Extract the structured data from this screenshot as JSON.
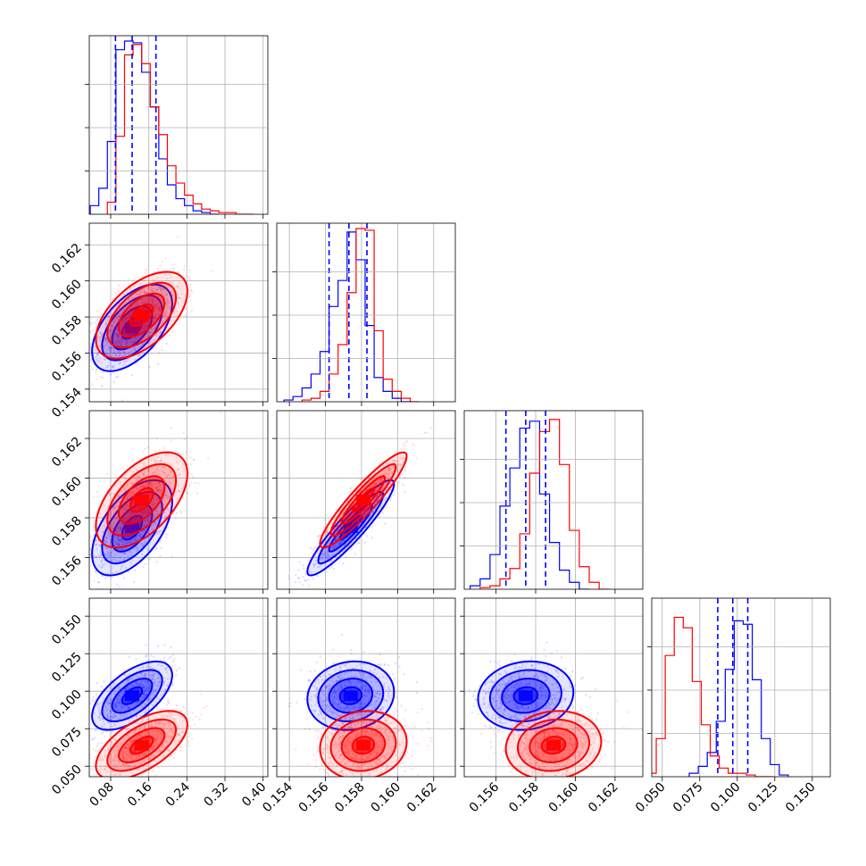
{
  "chart_data": {
    "type": "corner",
    "title": "",
    "params": [
      {
        "range": [
          0.035,
          0.41
        ],
        "ticks": [
          0.08,
          0.16,
          0.24,
          0.32,
          0.4
        ],
        "tick_labels": [
          "0.08",
          "0.16",
          "0.24",
          "0.32",
          "0.40"
        ]
      },
      {
        "range": [
          0.1533,
          0.1632
        ],
        "ticks": [
          0.154,
          0.156,
          0.158,
          0.16,
          0.162
        ],
        "tick_labels": [
          "0.154",
          "0.156",
          "0.158",
          "0.160",
          "0.162"
        ]
      },
      {
        "range": [
          0.1544,
          0.1634
        ],
        "ticks": [
          0.156,
          0.158,
          0.16,
          0.162
        ],
        "tick_labels": [
          "0.156",
          "0.158",
          "0.160",
          "0.162"
        ]
      },
      {
        "range": [
          0.043,
          0.162
        ],
        "ticks": [
          0.05,
          0.075,
          0.1,
          0.125,
          0.15
        ],
        "tick_labels": [
          "0.050",
          "0.075",
          "0.100",
          "0.125",
          "0.150"
        ]
      }
    ],
    "series": [
      {
        "color": "#0000ff",
        "means": [
          0.125,
          0.1574,
          0.1575,
          0.097
        ],
        "sds": [
          0.035,
          0.001,
          0.001,
          0.0095
        ],
        "correlations": [
          [
            1,
            0.55,
            0.55,
            0.6
          ],
          [
            0.55,
            1,
            0.92,
            0.1
          ],
          [
            0.55,
            0.92,
            1,
            0.1
          ],
          [
            0.6,
            0.1,
            0.1,
            1
          ]
        ],
        "quantiles": [
          [
            0.09,
            0.125,
            0.175
          ],
          [
            0.1562,
            0.1573,
            0.1583
          ],
          [
            0.1565,
            0.1575,
            0.1585
          ],
          [
            0.087,
            0.097,
            0.107
          ]
        ],
        "hist_x": [
          [
            0.037,
            0.055,
            0.073,
            0.091,
            0.109,
            0.127,
            0.145,
            0.163,
            0.181,
            0.199,
            0.217,
            0.235,
            0.253,
            0.271,
            0.289
          ],
          [
            0.1537,
            0.1542,
            0.1547,
            0.1552,
            0.1557,
            0.1562,
            0.1567,
            0.1572,
            0.1577,
            0.1582,
            0.1587,
            0.1592,
            0.1597,
            0.1602
          ],
          [
            0.1547,
            0.1552,
            0.1557,
            0.1562,
            0.1567,
            0.1572,
            0.1577,
            0.1582,
            0.1587,
            0.1592,
            0.1597,
            0.1602
          ],
          [
            0.068,
            0.074,
            0.08,
            0.086,
            0.092,
            0.098,
            0.104,
            0.11,
            0.116,
            0.122,
            0.128
          ]
        ],
        "hist_y": [
          [
            0.05,
            0.15,
            0.42,
            0.95,
            1.0,
            0.99,
            0.82,
            0.62,
            0.32,
            0.17,
            0.09,
            0.05,
            0.02,
            0.01,
            0.0
          ],
          [
            0.01,
            0.03,
            0.08,
            0.16,
            0.29,
            0.55,
            0.7,
            0.98,
            0.82,
            0.44,
            0.14,
            0.06,
            0.02,
            0.0
          ],
          [
            0.02,
            0.06,
            0.2,
            0.48,
            0.7,
            0.93,
            0.97,
            0.55,
            0.27,
            0.11,
            0.04,
            0.0
          ],
          [
            0.02,
            0.06,
            0.14,
            0.32,
            0.62,
            0.9,
            0.88,
            0.56,
            0.22,
            0.07,
            0.01
          ]
        ]
      },
      {
        "color": "#ff0000",
        "means": [
          0.145,
          0.1581,
          0.1589,
          0.064
        ],
        "sds": [
          0.04,
          0.001,
          0.001,
          0.0095
        ],
        "correlations": [
          [
            1,
            0.55,
            0.55,
            0.6
          ],
          [
            0.55,
            1,
            0.92,
            0.1
          ],
          [
            0.55,
            0.92,
            1,
            0.1
          ],
          [
            0.6,
            0.1,
            0.1,
            1
          ]
        ],
        "quantiles": [
          [
            0.105,
            0.145,
            0.195
          ],
          [
            0.1571,
            0.1581,
            0.1591
          ],
          [
            0.1579,
            0.1589,
            0.1599
          ],
          [
            0.054,
            0.064,
            0.074
          ]
        ],
        "hist_x": [
          [
            0.073,
            0.091,
            0.109,
            0.127,
            0.145,
            0.163,
            0.181,
            0.199,
            0.217,
            0.235,
            0.253,
            0.271,
            0.289,
            0.307,
            0.325,
            0.343,
            0.361
          ],
          [
            0.1547,
            0.1552,
            0.1557,
            0.1562,
            0.1567,
            0.1572,
            0.1577,
            0.1582,
            0.1587,
            0.1592,
            0.1597,
            0.1602,
            0.1607
          ],
          [
            0.1552,
            0.1557,
            0.1562,
            0.1567,
            0.1572,
            0.1577,
            0.1582,
            0.1587,
            0.1592,
            0.1597,
            0.1602,
            0.1607,
            0.1612
          ],
          [
            0.04,
            0.046,
            0.052,
            0.058,
            0.064,
            0.07,
            0.076,
            0.082,
            0.088,
            0.094,
            0.1,
            0.106,
            0.112,
            0.118
          ]
        ],
        "hist_y": [
          [
            0.07,
            0.45,
            0.92,
            0.98,
            0.87,
            0.62,
            0.46,
            0.28,
            0.18,
            0.11,
            0.06,
            0.03,
            0.02,
            0.01,
            0.01,
            0.0,
            0.0
          ],
          [
            0.01,
            0.02,
            0.06,
            0.16,
            0.33,
            0.63,
            1.0,
            0.99,
            0.41,
            0.13,
            0.06,
            0.02,
            0.0
          ],
          [
            0.01,
            0.02,
            0.06,
            0.12,
            0.32,
            0.67,
            0.91,
            0.98,
            0.72,
            0.34,
            0.13,
            0.04,
            0.0
          ],
          [
            0.02,
            0.22,
            0.7,
            0.92,
            0.86,
            0.55,
            0.3,
            0.12,
            0.05,
            0.02,
            0.02,
            0.01,
            0.0,
            0.0
          ]
        ]
      }
    ],
    "legend": "none",
    "grid": true
  }
}
